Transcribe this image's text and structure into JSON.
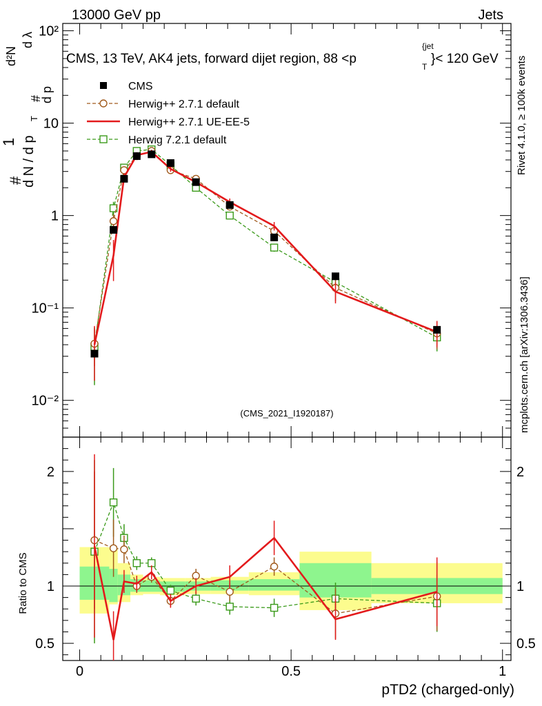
{
  "header": {
    "left": "13000 GeV pp",
    "right": "Jets",
    "title": "CMS, 13 TeV, AK4 jets, forward dijet region, 88 <p",
    "title_sub": "T",
    "title_sup": "{jet",
    "title_end": "}< 120 GeV",
    "side_top": "Rivet 4.1.0, ≥ 100k events",
    "side_bottom": "mcplots.cern.ch [arXiv:1306.3436]",
    "analysis": "(CMS_2021_I1920187)"
  },
  "axes": {
    "ylabel_main": "1 / dN/dpT · d²N/dpT dλ",
    "ylabel_ratio": "Ratio to CMS",
    "xlabel": "pTD2 (charged-only)",
    "ylabel_parts": {
      "num": "1",
      "den": "d N / d p",
      "sub": "T",
      "hash": "#",
      "d2N": "d²N",
      "dpT": "d p",
      "dl": "d λ"
    }
  },
  "legend": [
    {
      "label": "CMS",
      "style": "data"
    },
    {
      "label": "Herwig++ 2.7.1 default",
      "style": "h271"
    },
    {
      "label": "Herwig++ 2.7.1 UE-EE-5",
      "style": "ueee5"
    },
    {
      "label": "Herwig 7.2.1 default",
      "style": "h721"
    }
  ],
  "colors": {
    "data": "#000000",
    "h271": "#a05a1c",
    "ueee5": "#e31a1c",
    "h721": "#3a9a1a",
    "band_inner": "#8ef58e",
    "band_outer": "#fcfc8e"
  },
  "chart_data": {
    "type": "line",
    "xlim": [
      -0.04,
      1.02
    ],
    "ylim_main": [
      0.004,
      120
    ],
    "ylog": true,
    "ylim_ratio": [
      0.35,
      2.3
    ],
    "x_ticks": [
      0,
      0.5,
      1
    ],
    "x_tick_labels": [
      "0",
      "0.5",
      "1"
    ],
    "y_ticks_main": [
      0.01,
      0.1,
      1,
      10,
      100
    ],
    "y_tick_labels_main": [
      "10⁻²",
      "10⁻¹",
      "1",
      "10",
      "10²"
    ],
    "y_ticks_ratio": [
      0.5,
      1,
      2
    ],
    "y_tick_labels_ratio": [
      "0.5",
      "1",
      "2"
    ],
    "bins": [
      [
        0,
        0.07
      ],
      [
        0.07,
        0.09
      ],
      [
        0.09,
        0.12
      ],
      [
        0.12,
        0.15
      ],
      [
        0.15,
        0.19
      ],
      [
        0.19,
        0.25
      ],
      [
        0.25,
        0.31
      ],
      [
        0.31,
        0.4
      ],
      [
        0.4,
        0.52
      ],
      [
        0.52,
        0.69
      ],
      [
        0.69,
        1.0
      ]
    ],
    "x": [
      0.035,
      0.08,
      0.105,
      0.135,
      0.17,
      0.215,
      0.275,
      0.355,
      0.46,
      0.605,
      0.845
    ],
    "series": [
      {
        "name": "CMS",
        "key": "data",
        "values": [
          0.032,
          0.7,
          2.5,
          4.4,
          4.6,
          3.7,
          2.3,
          1.3,
          0.58,
          0.22,
          0.058
        ],
        "ratio_band_inner": [
          [
            0.88,
            1.17
          ],
          [
            0.86,
            1.15
          ],
          [
            0.92,
            1.1
          ],
          [
            0.95,
            1.06
          ],
          [
            0.95,
            1.05
          ],
          [
            0.95,
            1.04
          ],
          [
            0.96,
            1.04
          ],
          [
            0.96,
            1.05
          ],
          [
            0.96,
            1.06
          ],
          [
            0.9,
            1.2
          ],
          [
            0.93,
            1.07
          ]
        ],
        "ratio_band_outer": [
          [
            0.76,
            1.34
          ],
          [
            0.84,
            1.33
          ],
          [
            0.86,
            1.2
          ],
          [
            0.92,
            1.1
          ],
          [
            0.93,
            1.08
          ],
          [
            0.92,
            1.07
          ],
          [
            0.93,
            1.07
          ],
          [
            0.93,
            1.08
          ],
          [
            0.92,
            1.12
          ],
          [
            0.79,
            1.3
          ],
          [
            0.85,
            1.2
          ]
        ]
      },
      {
        "name": "Herwig++ 2.7.1 default",
        "key": "h271",
        "values": [
          0.041,
          0.87,
          3.1,
          4.4,
          5.0,
          3.1,
          2.5,
          1.25,
          0.68,
          0.165,
          0.053
        ],
        "ratio": [
          1.4,
          1.33,
          1.32,
          1.0,
          1.08,
          0.87,
          1.09,
          0.95,
          1.17,
          0.76,
          0.91
        ],
        "ratio_err": [
          0.6,
          0.25,
          0.12,
          0.06,
          0.05,
          0.05,
          0.06,
          0.08,
          0.08,
          0.22,
          0.3
        ]
      },
      {
        "name": "Herwig++ 2.7.1 UE-EE-5",
        "key": "ueee5",
        "values": [
          0.04,
          0.37,
          2.6,
          4.5,
          4.9,
          3.2,
          2.3,
          1.4,
          0.77,
          0.15,
          0.055
        ],
        "ratio": [
          1.35,
          0.53,
          1.04,
          1.02,
          1.12,
          0.87,
          1.0,
          1.08,
          1.42,
          0.71,
          0.95
        ],
        "ratio_err": [
          0.8,
          0.25,
          0.1,
          0.07,
          0.06,
          0.06,
          0.07,
          0.1,
          0.15,
          0.18,
          0.3
        ]
      },
      {
        "name": "Herwig 7.2.1 default",
        "key": "h721",
        "values": [
          0.038,
          1.2,
          3.3,
          5.0,
          5.2,
          3.5,
          2.0,
          1.0,
          0.45,
          0.19,
          0.048
        ],
        "ratio": [
          1.3,
          1.73,
          1.42,
          1.2,
          1.2,
          0.96,
          0.89,
          0.82,
          0.81,
          0.89,
          0.85
        ],
        "ratio_err": [
          0.8,
          0.3,
          0.12,
          0.06,
          0.05,
          0.05,
          0.06,
          0.07,
          0.08,
          0.14,
          0.25
        ]
      }
    ]
  }
}
